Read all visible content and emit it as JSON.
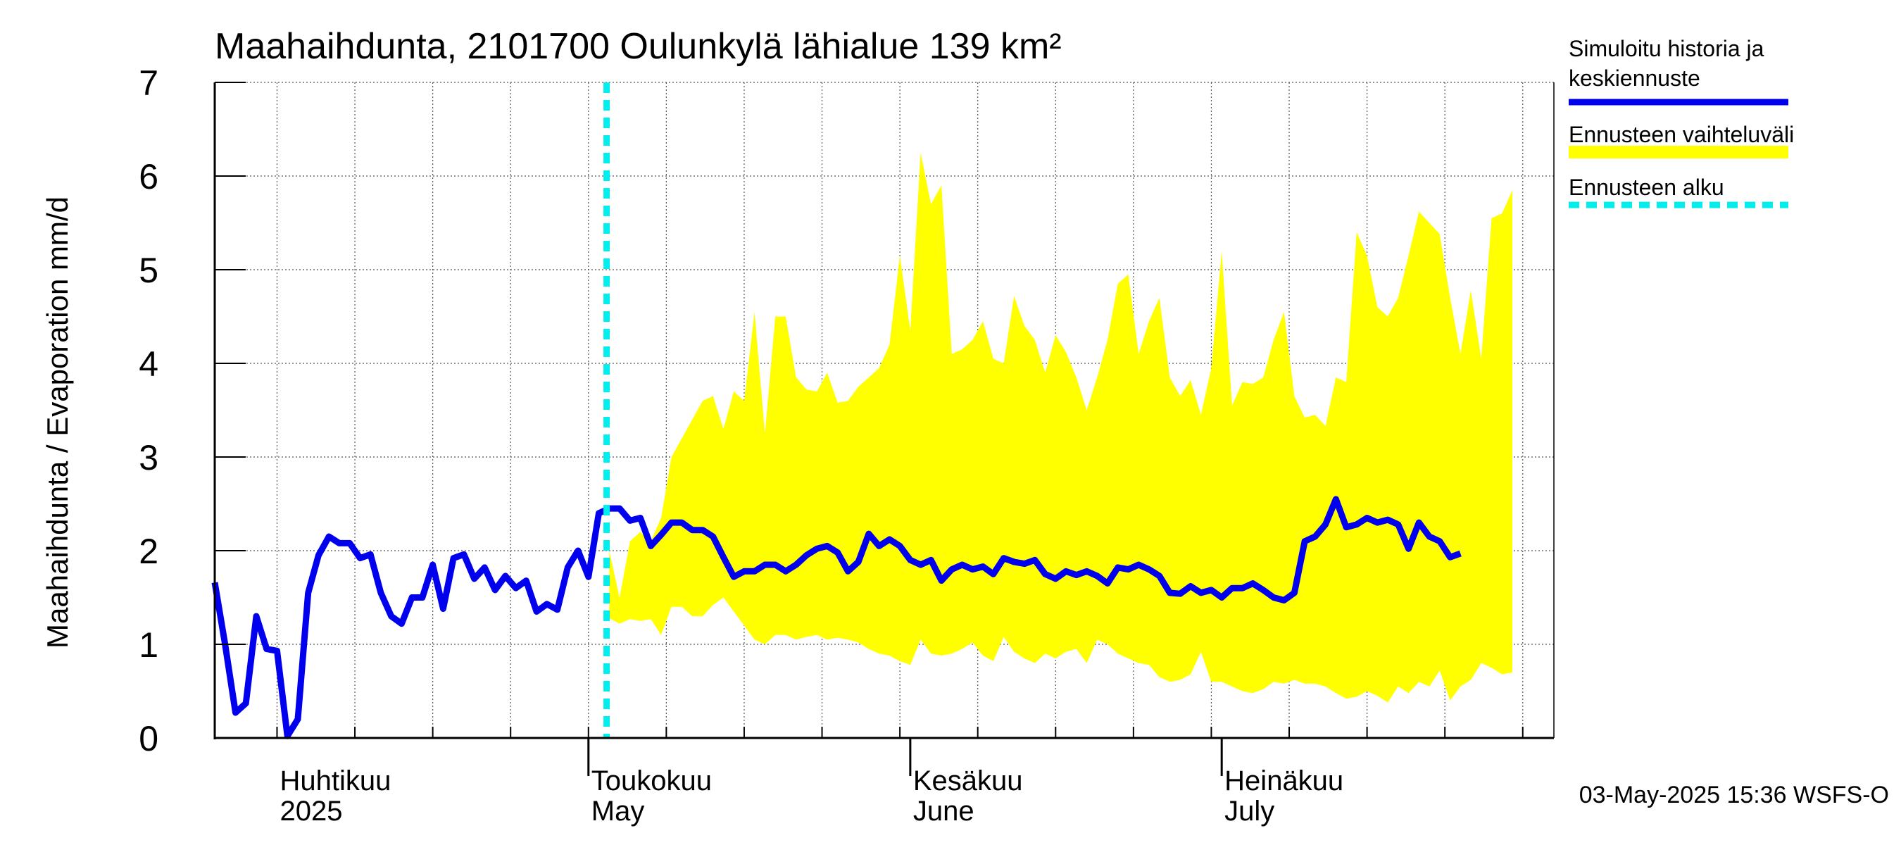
{
  "chart_data": {
    "type": "line",
    "title": "Maahaihdunta, 2101700 Oulunkylä lähialue 139 km²",
    "ylabel": "Maahaihdunta / Evaporation   mm/d",
    "ylim": [
      0,
      7
    ],
    "yticks": [
      0,
      1,
      2,
      3,
      4,
      5,
      6,
      7
    ],
    "xlim": [
      "2025-03-26",
      "2025-08-02"
    ],
    "grid": true,
    "month_labels": [
      {
        "fi": "Huhtikuu",
        "en": "2025",
        "date": "2025-04-01"
      },
      {
        "fi": "Toukokuu",
        "en": "May",
        "date": "2025-05-01"
      },
      {
        "fi": "Kesäkuu",
        "en": "June",
        "date": "2025-06-01"
      },
      {
        "fi": "Heinäkuu",
        "en": "July",
        "date": "2025-07-01"
      }
    ],
    "forecast_start": "2025-05-03",
    "legend": {
      "placement": "right",
      "entries": [
        {
          "label_line1": "Simuloitu historia ja",
          "label_line2": "keskiennuste",
          "color": "#0000ee",
          "style": "solid"
        },
        {
          "label_line1": "Ennusteen vaihteluväli",
          "label_line2": "",
          "color": "#ffff00",
          "style": "band"
        },
        {
          "label_line1": "Ennusteen alku",
          "label_line2": "",
          "color": "#00eeee",
          "style": "dashed"
        }
      ]
    },
    "footer": "03-May-2025 15:36 WSFS-O",
    "series": [
      {
        "name": "Simuloitu historia ja keskiennuste",
        "color": "#0000ee",
        "start_date": "2025-03-26",
        "values": [
          1.66,
          1.0,
          0.27,
          0.37,
          1.3,
          0.95,
          0.93,
          0.02,
          0.2,
          1.55,
          1.95,
          2.15,
          2.08,
          2.08,
          1.92,
          1.96,
          1.55,
          1.3,
          1.22,
          1.5,
          1.5,
          1.85,
          1.38,
          1.92,
          1.96,
          1.7,
          1.82,
          1.58,
          1.73,
          1.6,
          1.68,
          1.35,
          1.43,
          1.37,
          1.82,
          2.0,
          1.72,
          2.4,
          2.45,
          2.45,
          2.32,
          2.35,
          2.05,
          2.17,
          2.3,
          2.3,
          2.22,
          2.22,
          2.15,
          1.93,
          1.72,
          1.78,
          1.78,
          1.85,
          1.85,
          1.78,
          1.85,
          1.95,
          2.02,
          2.05,
          1.98,
          1.78,
          1.88,
          2.18,
          2.05,
          2.12,
          2.05,
          1.9,
          1.85,
          1.9,
          1.68,
          1.8,
          1.85,
          1.8,
          1.83,
          1.75,
          1.92,
          1.88,
          1.86,
          1.9,
          1.75,
          1.7,
          1.78,
          1.74,
          1.78,
          1.73,
          1.65,
          1.82,
          1.8,
          1.85,
          1.8,
          1.73,
          1.55,
          1.54,
          1.62,
          1.55,
          1.58,
          1.5,
          1.6,
          1.6,
          1.65,
          1.58,
          1.5,
          1.47,
          1.55,
          2.1,
          2.15,
          2.28,
          2.55,
          2.25,
          2.28,
          2.35,
          2.3,
          2.33,
          2.28,
          2.02,
          2.3,
          2.15,
          2.1,
          1.93,
          1.97
        ]
      },
      {
        "name": "Ennusteen vaihteluväli",
        "color": "#ffff00",
        "start_date": "2025-05-03",
        "upper": [
          2.0,
          1.5,
          2.1,
          2.2,
          2.1,
          2.35,
          3.0,
          3.2,
          3.4,
          3.6,
          3.65,
          3.3,
          3.7,
          3.6,
          4.55,
          3.25,
          4.5,
          4.5,
          3.85,
          3.72,
          3.7,
          3.9,
          3.58,
          3.6,
          3.75,
          3.85,
          3.95,
          4.2,
          5.15,
          4.35,
          6.25,
          5.7,
          5.9,
          4.1,
          4.15,
          4.25,
          4.45,
          4.05,
          4.0,
          4.72,
          4.4,
          4.25,
          3.9,
          4.3,
          4.12,
          3.85,
          3.5,
          3.85,
          4.25,
          4.85,
          4.95,
          4.1,
          4.45,
          4.7,
          3.85,
          3.65,
          3.82,
          3.45,
          3.95,
          5.2,
          3.55,
          3.8,
          3.78,
          3.85,
          4.25,
          4.55,
          3.65,
          3.42,
          3.45,
          3.33,
          3.85,
          3.8,
          5.4,
          5.15,
          4.6,
          4.5,
          4.7,
          5.15,
          5.62,
          5.5,
          5.38,
          4.7,
          4.1,
          4.78,
          4.05,
          5.55,
          5.6,
          5.85
        ],
        "lower": [
          1.28,
          1.22,
          1.27,
          1.25,
          1.27,
          1.1,
          1.4,
          1.4,
          1.3,
          1.3,
          1.42,
          1.5,
          1.35,
          1.2,
          1.05,
          1.0,
          1.1,
          1.1,
          1.05,
          1.08,
          1.1,
          1.05,
          1.07,
          1.05,
          1.02,
          0.95,
          0.9,
          0.88,
          0.82,
          0.78,
          1.05,
          0.9,
          0.88,
          0.9,
          0.95,
          1.02,
          0.88,
          0.82,
          1.08,
          0.92,
          0.85,
          0.8,
          0.9,
          0.85,
          0.92,
          0.95,
          0.8,
          1.05,
          1.0,
          0.9,
          0.85,
          0.8,
          0.78,
          0.65,
          0.6,
          0.62,
          0.68,
          0.92,
          0.6,
          0.6,
          0.55,
          0.5,
          0.48,
          0.52,
          0.6,
          0.58,
          0.62,
          0.58,
          0.58,
          0.55,
          0.48,
          0.42,
          0.44,
          0.5,
          0.45,
          0.38,
          0.55,
          0.48,
          0.6,
          0.55,
          0.72,
          0.4,
          0.55,
          0.62,
          0.8,
          0.75,
          0.68,
          0.7
        ]
      }
    ]
  }
}
